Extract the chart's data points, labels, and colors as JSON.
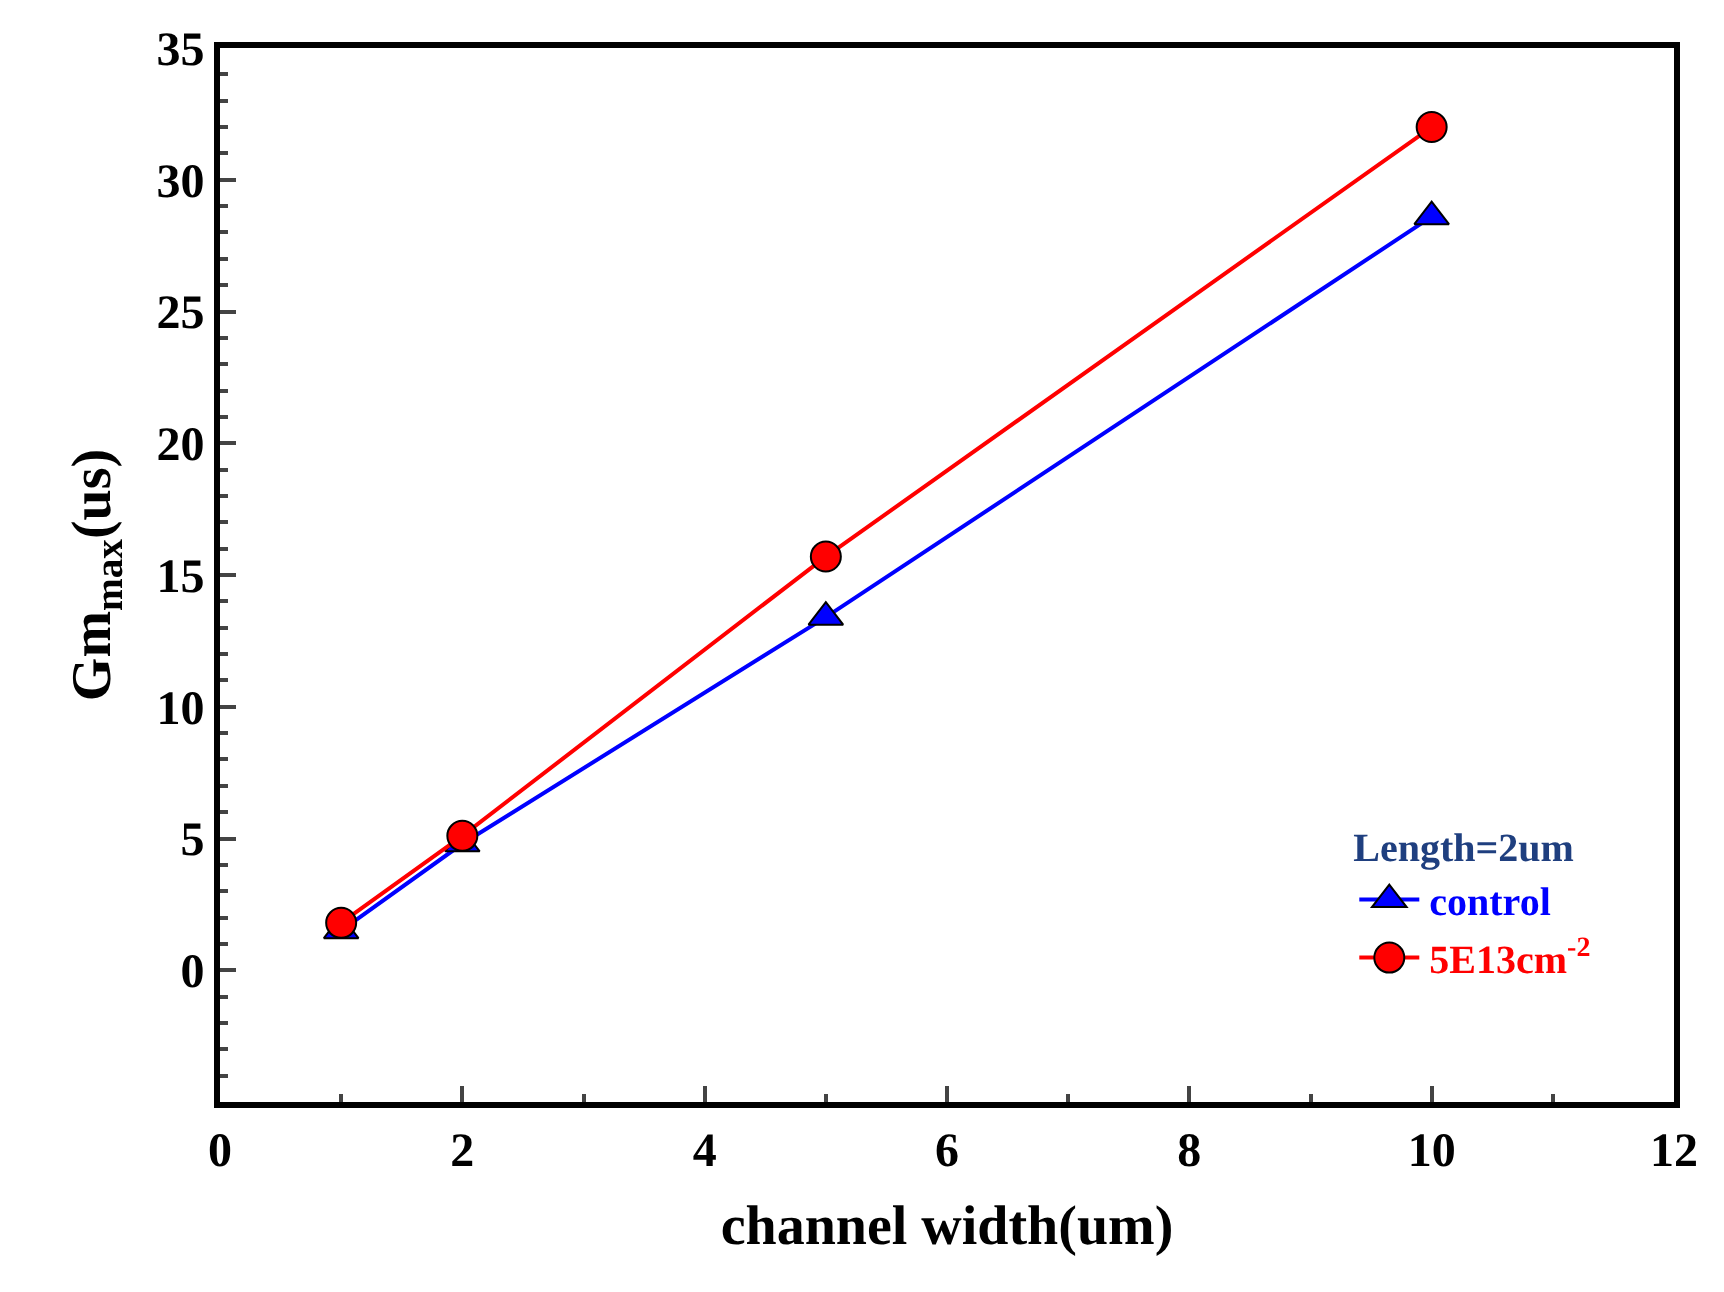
{
  "chart_data": {
    "type": "line",
    "xlabel": "channel width(um)",
    "ylabel": "Gm$_{max}$(us)",
    "legend_title": "Length=2um",
    "x": [
      1,
      2,
      5,
      10
    ],
    "series": [
      {
        "name": "control",
        "color": "#0000ff",
        "marker": "triangle",
        "values": [
          1.5,
          4.8,
          13.4,
          28.6
        ]
      },
      {
        "name": "5E13cm$^{-2}$",
        "color": "#ff0000",
        "marker": "circle",
        "values": [
          1.8,
          5.1,
          15.7,
          32.0
        ]
      }
    ],
    "xlim": [
      0,
      12
    ],
    "xticks": [
      0,
      2,
      4,
      6,
      8,
      10,
      12
    ],
    "ylim": [
      -5,
      35
    ],
    "yticks": [
      0,
      5,
      10,
      15,
      20,
      25,
      30,
      35
    ],
    "legend": "bottom right",
    "line_style": "solid"
  }
}
